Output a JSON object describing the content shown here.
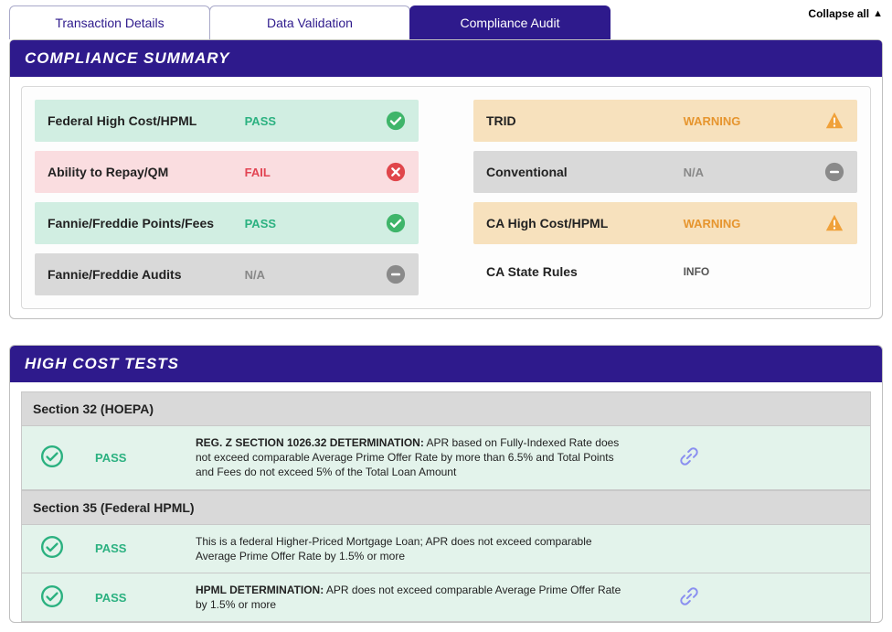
{
  "tabs": [
    {
      "label": "Transaction Details",
      "active": false
    },
    {
      "label": "Data Validation",
      "active": false
    },
    {
      "label": "Compliance Audit",
      "active": true
    }
  ],
  "collapse_label": "Collapse all",
  "compliance_summary": {
    "title": "COMPLIANCE SUMMARY",
    "left": [
      {
        "label": "Federal High Cost/HPML",
        "status_text": "PASS",
        "status": "pass"
      },
      {
        "label": "Ability to Repay/QM",
        "status_text": "FAIL",
        "status": "fail"
      },
      {
        "label": "Fannie/Freddie Points/Fees",
        "status_text": "PASS",
        "status": "pass"
      },
      {
        "label": "Fannie/Freddie Audits",
        "status_text": "N/A",
        "status": "na"
      }
    ],
    "right": [
      {
        "label": "TRID",
        "status_text": "WARNING",
        "status": "warn"
      },
      {
        "label": "Conventional",
        "status_text": "N/A",
        "status": "na"
      },
      {
        "label": "CA High Cost/HPML",
        "status_text": "WARNING",
        "status": "warn"
      },
      {
        "label": "CA State Rules",
        "status_text": "INFO",
        "status": "info"
      }
    ]
  },
  "high_cost": {
    "title": "HIGH COST TESTS",
    "groups": [
      {
        "header": "Section 32 (HOEPA)",
        "rows": [
          {
            "status": "pass",
            "status_text": "PASS",
            "bold": "REG. Z SECTION 1026.32 DETERMINATION:",
            "desc": " APR based on Fully-Indexed Rate does not exceed comparable Average Prime Offer Rate by more than 6.5% and Total Points and Fees do not exceed 5% of the Total Loan Amount",
            "has_link": true
          }
        ]
      },
      {
        "header": "Section 35 (Federal HPML)",
        "rows": [
          {
            "status": "pass",
            "status_text": "PASS",
            "bold": "",
            "desc": "This is a federal Higher-Priced Mortgage Loan; APR does not exceed comparable Average Prime Offer Rate by 1.5% or more",
            "has_link": false
          },
          {
            "status": "pass",
            "status_text": "PASS",
            "bold": "HPML DETERMINATION:",
            "desc": " APR does not exceed comparable Average Prime Offer Rate by 1.5% or more",
            "has_link": true
          }
        ]
      }
    ]
  },
  "colors": {
    "brand": "#2e1a8c",
    "pass_bg": "#d1eee2",
    "fail_bg": "#fadde0",
    "na_bg": "#d9d9d9",
    "warn_bg": "#f7e1bd",
    "pass_text": "#2bb180",
    "fail_text": "#e24453",
    "na_text": "#888888",
    "warn_text": "#e6952e",
    "icon_pass": "#3fb56a",
    "icon_fail": "#e0464b",
    "icon_na": "#8a8a8a",
    "icon_warn": "#f0a13a",
    "link_icon": "#8a8ff0",
    "outline_pass": "#2bb180"
  }
}
